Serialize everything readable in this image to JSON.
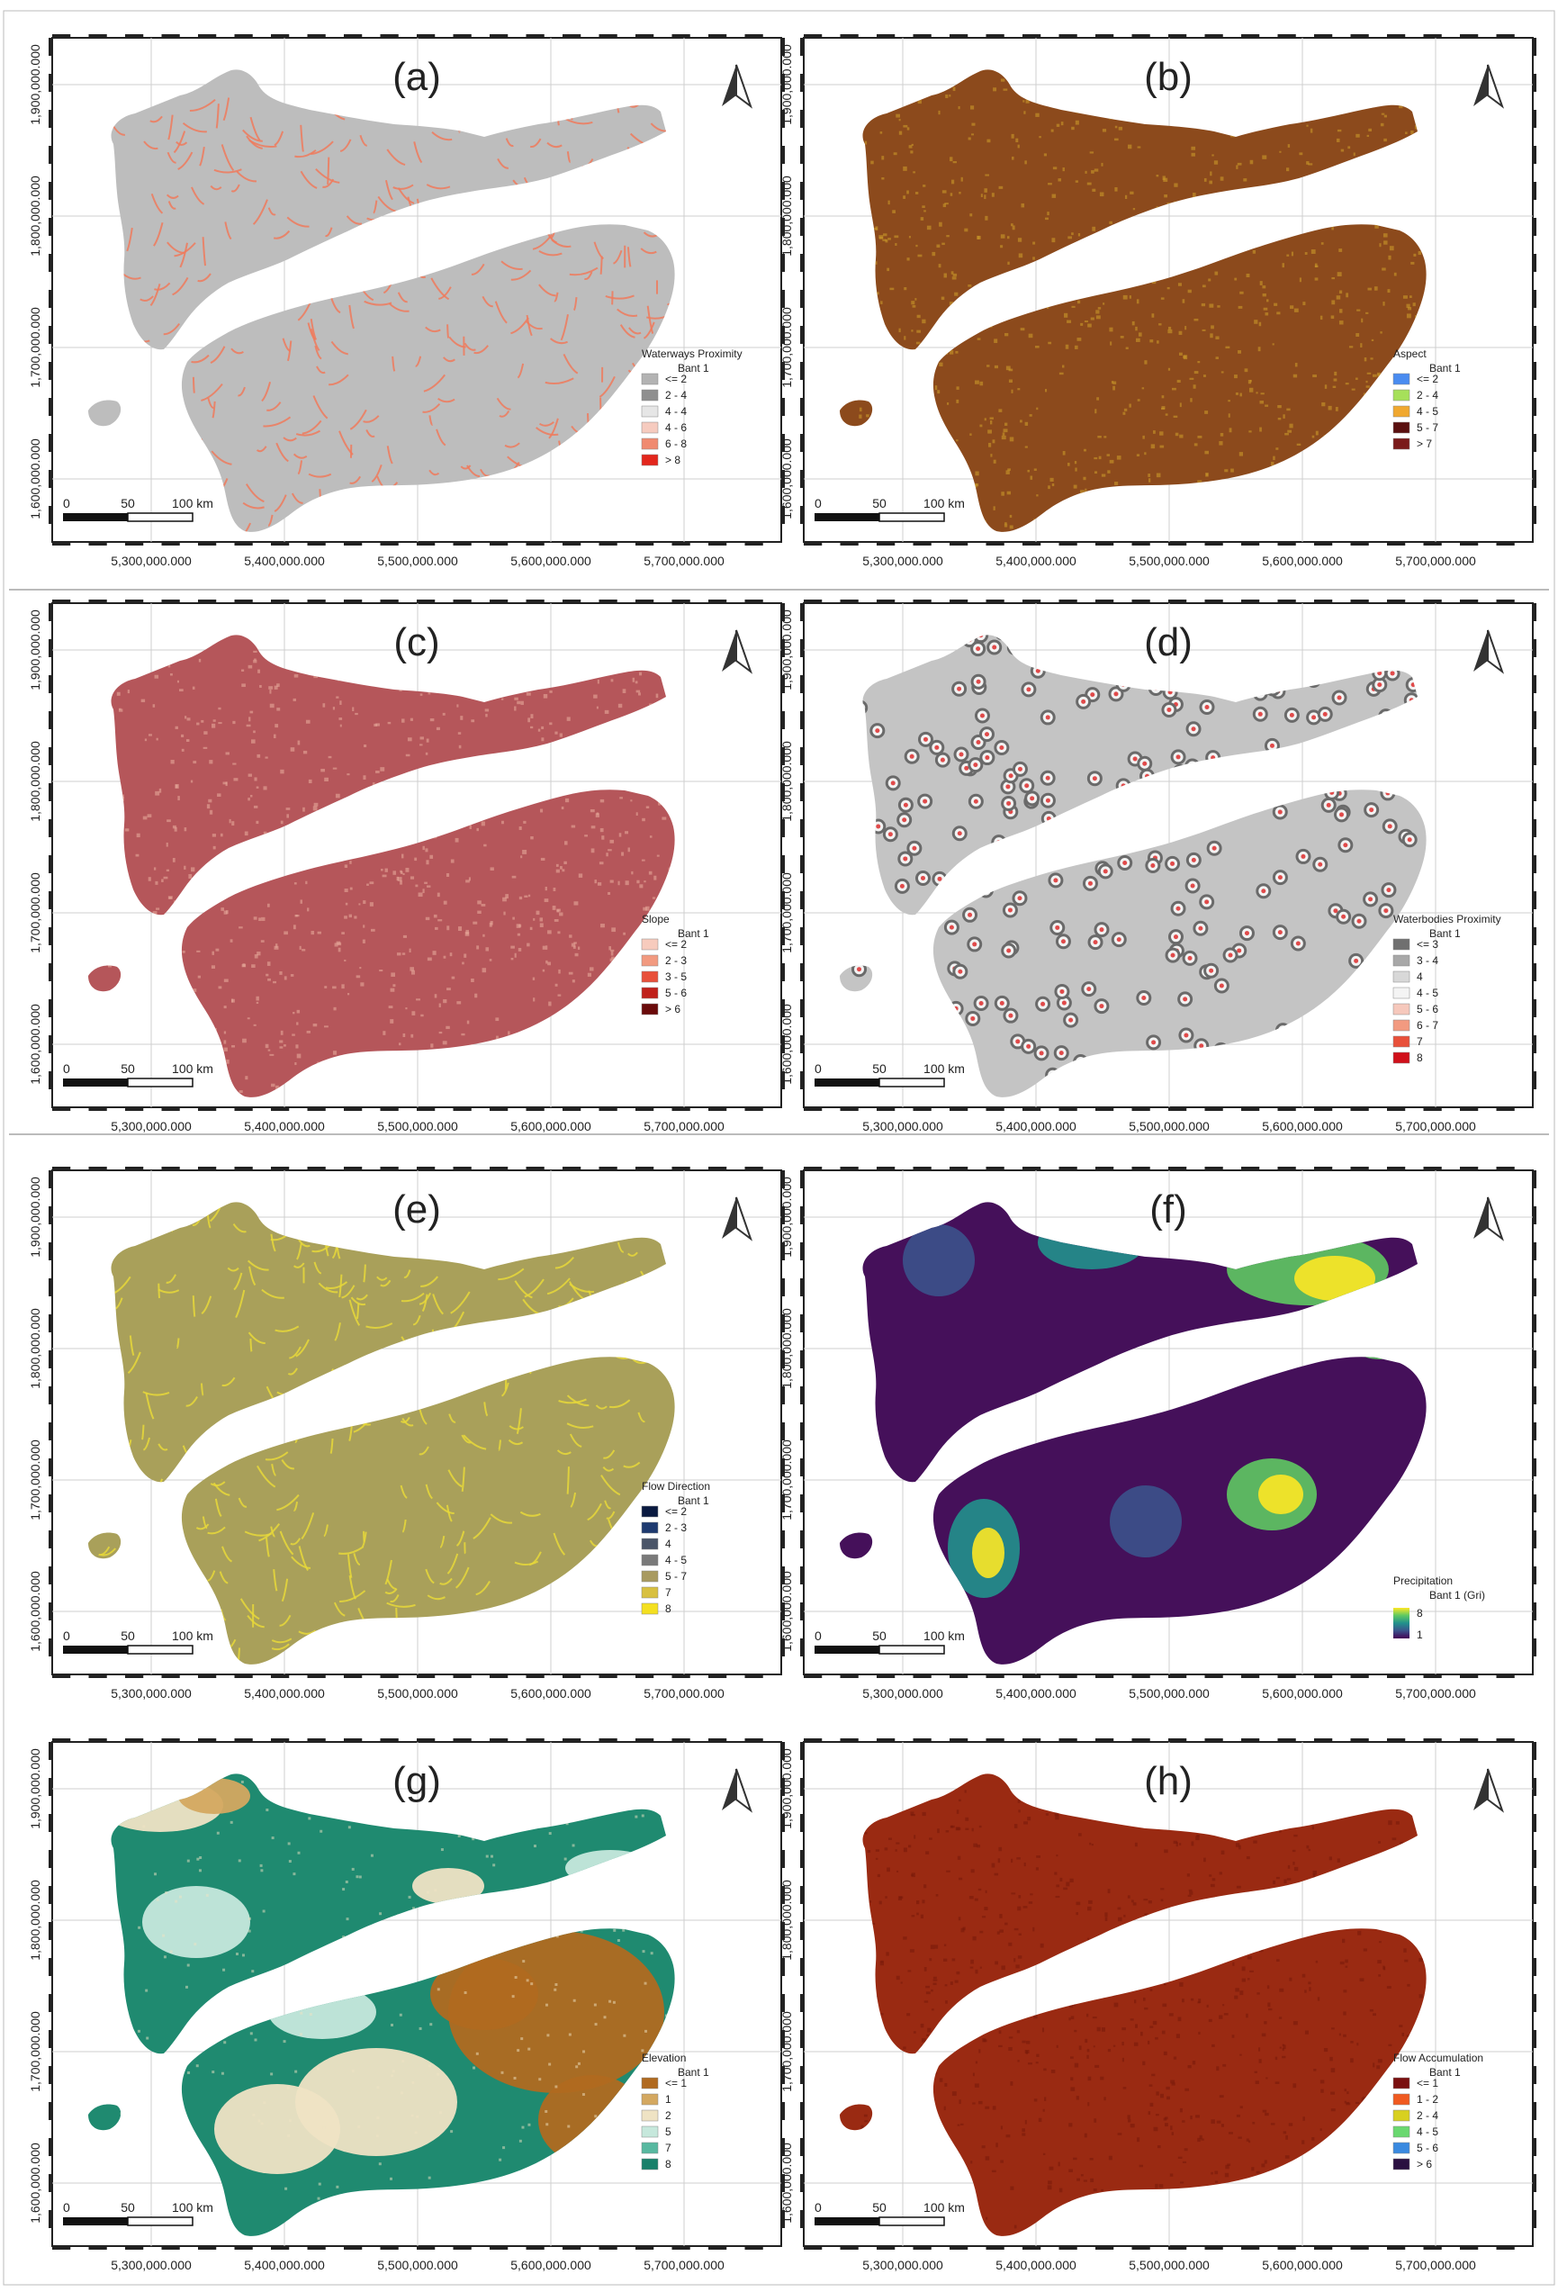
{
  "figure": {
    "x_ticks": [
      "5,300,000.000",
      "5,400,000.000",
      "5,500,000.000",
      "5,600,000.000",
      "5,700,000.000"
    ],
    "y_ticks": [
      "1,600,000.000",
      "1,700,000.000",
      "1,800,000.000",
      "1,900,000.000"
    ],
    "scale_bar": {
      "labels": [
        "0",
        "50",
        "100 km"
      ]
    },
    "north_arrow_icon": "north-arrow-icon"
  },
  "panels": [
    {
      "id": "a",
      "label": "(a)",
      "legend_title": "Waterways Proximity",
      "legend_subtitle": "Bant 1",
      "land_color": "#bdbdbd",
      "pattern": "lines",
      "pattern_color": "#f07a5c",
      "legend": [
        {
          "label": "<= 2",
          "color": "#b3b3b3"
        },
        {
          "label": "2 - 4",
          "color": "#8f8f8f"
        },
        {
          "label": "4 - 4",
          "color": "#e6e6e6"
        },
        {
          "label": "4 - 6",
          "color": "#f6cbbf"
        },
        {
          "label": "6 - 8",
          "color": "#f08a70"
        },
        {
          "label": "> 8",
          "color": "#e3261c"
        }
      ]
    },
    {
      "id": "b",
      "label": "(b)",
      "legend_title": "Aspect",
      "legend_subtitle": "Bant 1",
      "land_color": "#8c4a1c",
      "pattern": "speckle",
      "pattern_color": "#c99a2a",
      "legend": [
        {
          "label": "<= 2",
          "color": "#4a8cf0"
        },
        {
          "label": "2 - 4",
          "color": "#a6e05a"
        },
        {
          "label": "4 - 5",
          "color": "#f0a830"
        },
        {
          "label": "5 - 7",
          "color": "#5a1010"
        },
        {
          "label": "> 7",
          "color": "#7a1a1a"
        }
      ]
    },
    {
      "id": "c",
      "label": "(c)",
      "legend_title": "Slope",
      "legend_subtitle": "Bant 1",
      "land_color": "#b5565a",
      "pattern": "speckle",
      "pattern_color": "#e6a89a",
      "legend": [
        {
          "label": "<= 2",
          "color": "#f7cbbd"
        },
        {
          "label": "2 - 3",
          "color": "#f29a80"
        },
        {
          "label": "3 - 5",
          "color": "#e8503a"
        },
        {
          "label": "5 - 6",
          "color": "#c0201a"
        },
        {
          "label": "> 6",
          "color": "#6a0a0a"
        }
      ]
    },
    {
      "id": "d",
      "label": "(d)",
      "legend_title": "Waterbodies Proximity",
      "legend_subtitle": "Bant 1",
      "land_color": "#c4c4c4",
      "pattern": "rings",
      "pattern_color": "#e04a4a",
      "legend": [
        {
          "label": "<= 3",
          "color": "#707070"
        },
        {
          "label": "3 - 4",
          "color": "#a8a8a8"
        },
        {
          "label": "4",
          "color": "#d8d8d8"
        },
        {
          "label": "4 - 5",
          "color": "#f4f4f4"
        },
        {
          "label": "5 - 6",
          "color": "#f6c8bc"
        },
        {
          "label": "6 - 7",
          "color": "#f29a80"
        },
        {
          "label": "7",
          "color": "#e8503a"
        },
        {
          "label": "8",
          "color": "#d0101a"
        }
      ]
    },
    {
      "id": "e",
      "label": "(e)",
      "legend_title": "Flow Direction",
      "legend_subtitle": "Bant 1",
      "land_color": "#a9a05a",
      "pattern": "lines",
      "pattern_color": "#e8d83a",
      "legend": [
        {
          "label": "<= 2",
          "color": "#0a1a40"
        },
        {
          "label": "2 - 3",
          "color": "#1e3a70"
        },
        {
          "label": "4",
          "color": "#4a5568"
        },
        {
          "label": "4 - 5",
          "color": "#7a7a7a"
        },
        {
          "label": "5 - 7",
          "color": "#a89a60"
        },
        {
          "label": "7",
          "color": "#d8c040"
        },
        {
          "label": "8",
          "color": "#f4e020"
        }
      ]
    },
    {
      "id": "f",
      "label": "(f)",
      "legend_title": "Precipitation",
      "legend_subtitle": "Bant 1 (Gri)",
      "land_color": "#45105a",
      "pattern": "blobs",
      "pattern_color": "#2a7aa0",
      "gradient": true,
      "gradient_max": "8",
      "gradient_min": "1",
      "gradient_colors": [
        "#fde725",
        "#5ec962",
        "#21918c",
        "#3b528b",
        "#440154"
      ],
      "legend": []
    },
    {
      "id": "g",
      "label": "(g)",
      "legend_title": "Elevation",
      "legend_subtitle": "Bant 1",
      "land_color": "#1f8a70",
      "pattern": "elevation",
      "pattern_color": "#b8772a",
      "legend": [
        {
          "label": "<= 1",
          "color": "#b06a20"
        },
        {
          "label": "1",
          "color": "#d4a860"
        },
        {
          "label": "2",
          "color": "#efe3c4"
        },
        {
          "label": "5",
          "color": "#c6e8dc"
        },
        {
          "label": "7",
          "color": "#58b8a0"
        },
        {
          "label": "8",
          "color": "#18806a"
        }
      ]
    },
    {
      "id": "h",
      "label": "(h)",
      "legend_title": "Flow Accumulation",
      "legend_subtitle": "Bant 1",
      "land_color": "#9a2a12",
      "pattern": "speckle",
      "pattern_color": "#7a1a0a",
      "legend": [
        {
          "label": "<= 1",
          "color": "#7a0f0f"
        },
        {
          "label": "1 - 2",
          "color": "#f05a20"
        },
        {
          "label": "2 - 4",
          "color": "#d8d020"
        },
        {
          "label": "4 - 5",
          "color": "#6ad870"
        },
        {
          "label": "5 - 6",
          "color": "#3a8ae0"
        },
        {
          "label": "> 6",
          "color": "#2a1040"
        }
      ]
    }
  ]
}
